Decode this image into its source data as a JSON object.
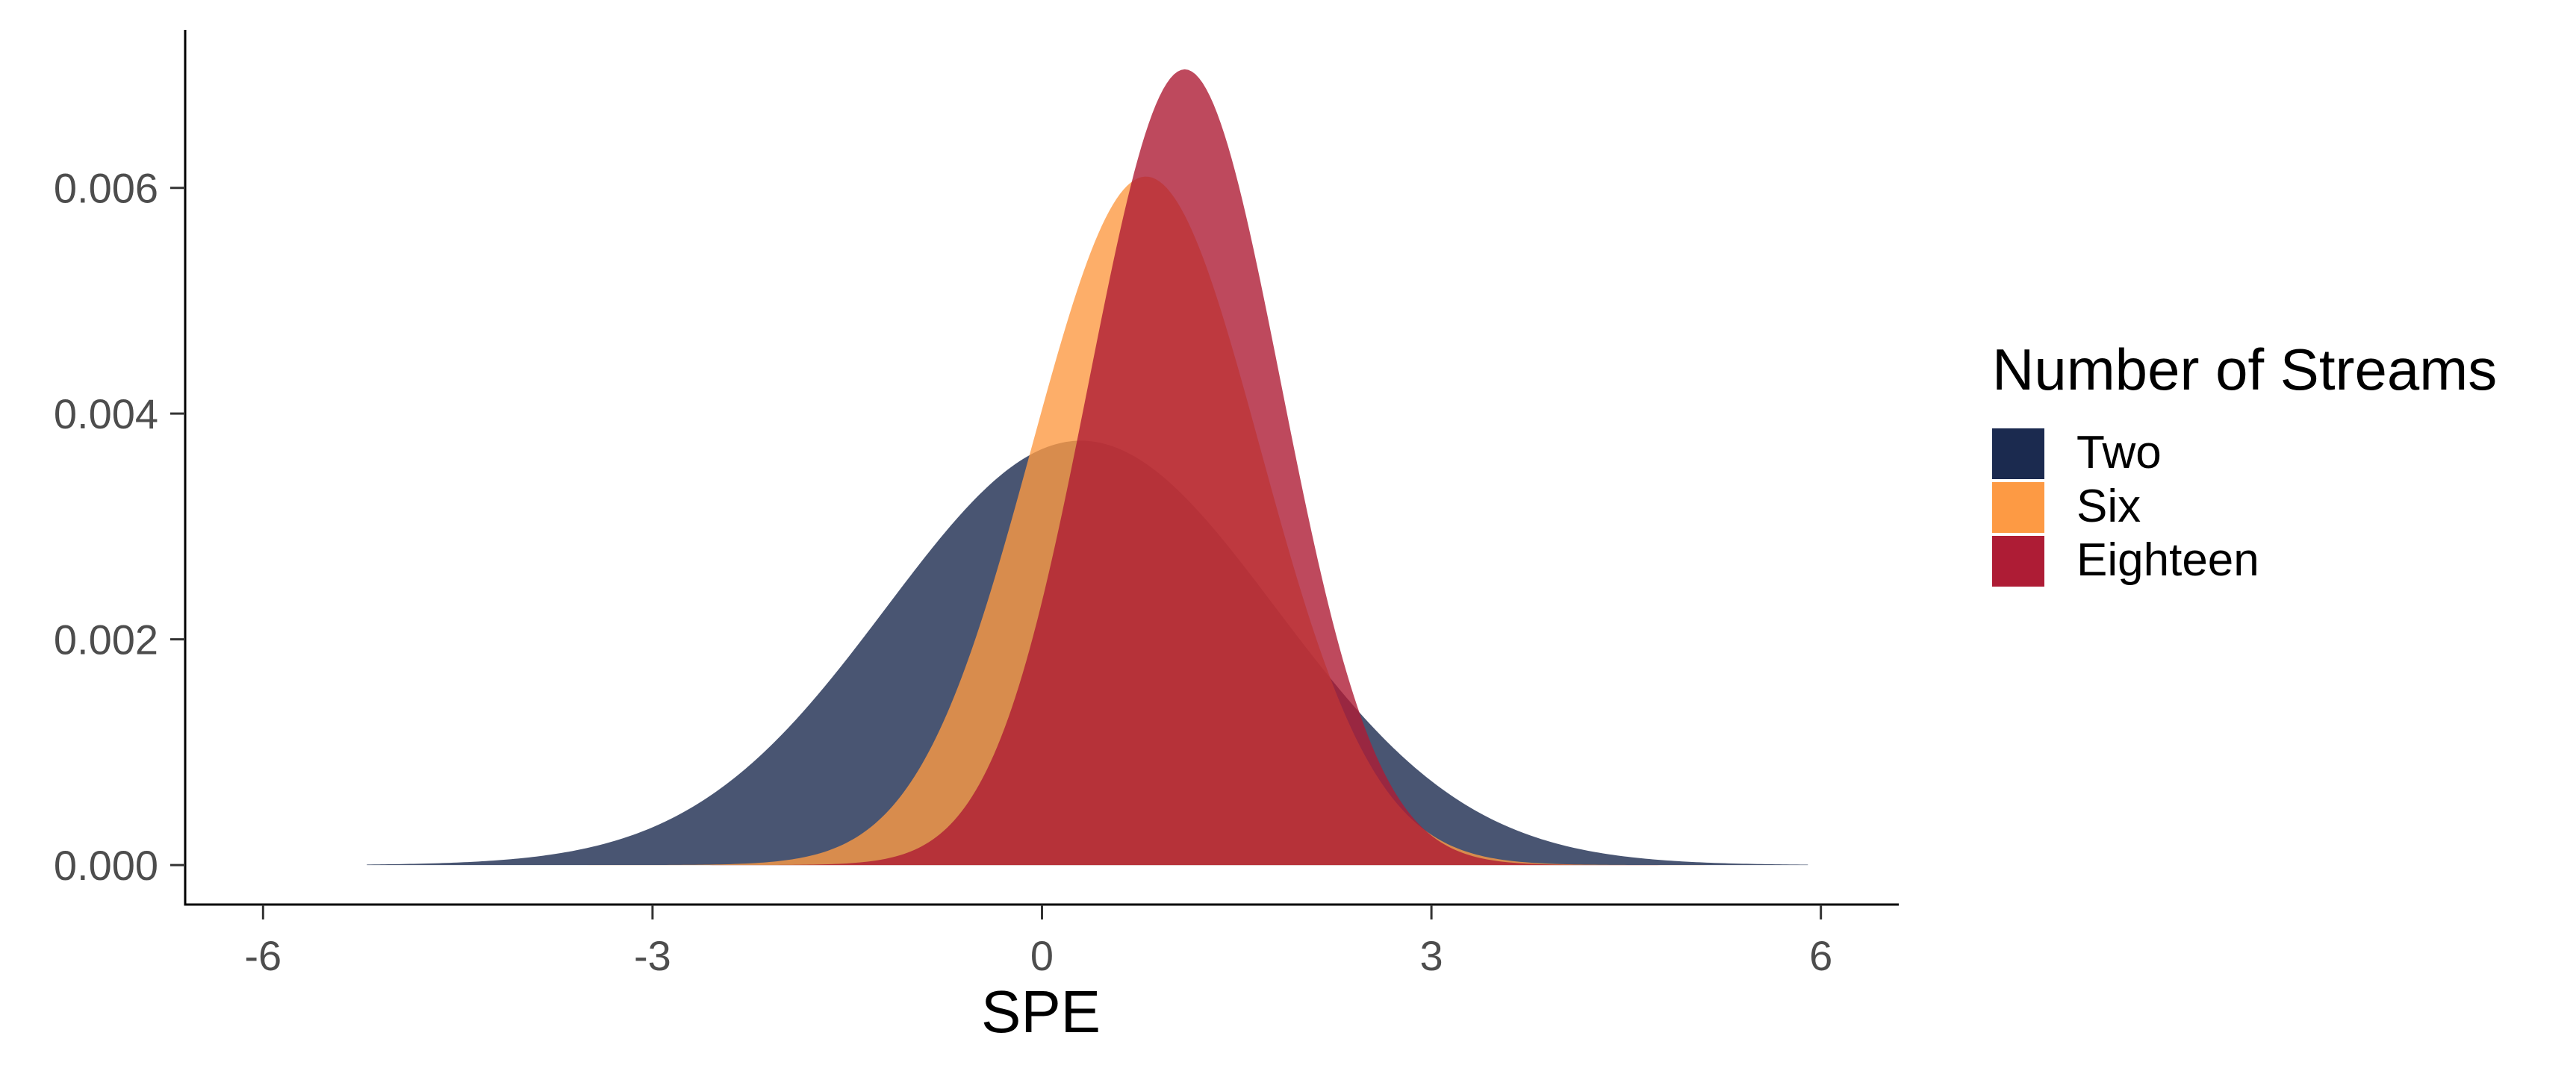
{
  "chart_data": {
    "type": "area",
    "subtype": "density",
    "title": "",
    "xlabel": "SPE",
    "ylabel": "",
    "xlim": [
      -6.6,
      6.6
    ],
    "ylim": [
      -0.00035,
      0.0074
    ],
    "x_ticks": [
      -6,
      -3,
      0,
      3,
      6
    ],
    "x_tick_labels": [
      "-6",
      "-3",
      "0",
      "3",
      "6"
    ],
    "y_ticks": [
      0.0,
      0.002,
      0.004,
      0.006
    ],
    "y_tick_labels": [
      "0.000",
      "0.002",
      "0.004",
      "0.006"
    ],
    "grid": false,
    "legend": {
      "title": "Number of Streams",
      "position": "right",
      "entries": [
        {
          "label": "Two",
          "color": "#1b2a4f"
        },
        {
          "label": "Six",
          "color": "#fd9a44"
        },
        {
          "label": "Eighteen",
          "color": "#ae1c35"
        }
      ]
    },
    "series": [
      {
        "name": "Two",
        "color": "#1b2a4f",
        "opacity": 0.8,
        "x_range": [
          -5.2,
          5.9
        ],
        "peak_x": 0.3,
        "peak_y": 0.00376,
        "sd": 1.5
      },
      {
        "name": "Six",
        "color": "#fd9a44",
        "opacity": 0.8,
        "x_range": [
          -5.2,
          5.9
        ],
        "peak_x": 0.8,
        "peak_y": 0.0061,
        "sd": 0.88
      },
      {
        "name": "Eighteen",
        "color": "#ae1c35",
        "opacity": 0.8,
        "x_range": [
          -5.2,
          5.9
        ],
        "peak_x": 1.1,
        "peak_y": 0.00705,
        "sd": 0.74
      }
    ]
  }
}
